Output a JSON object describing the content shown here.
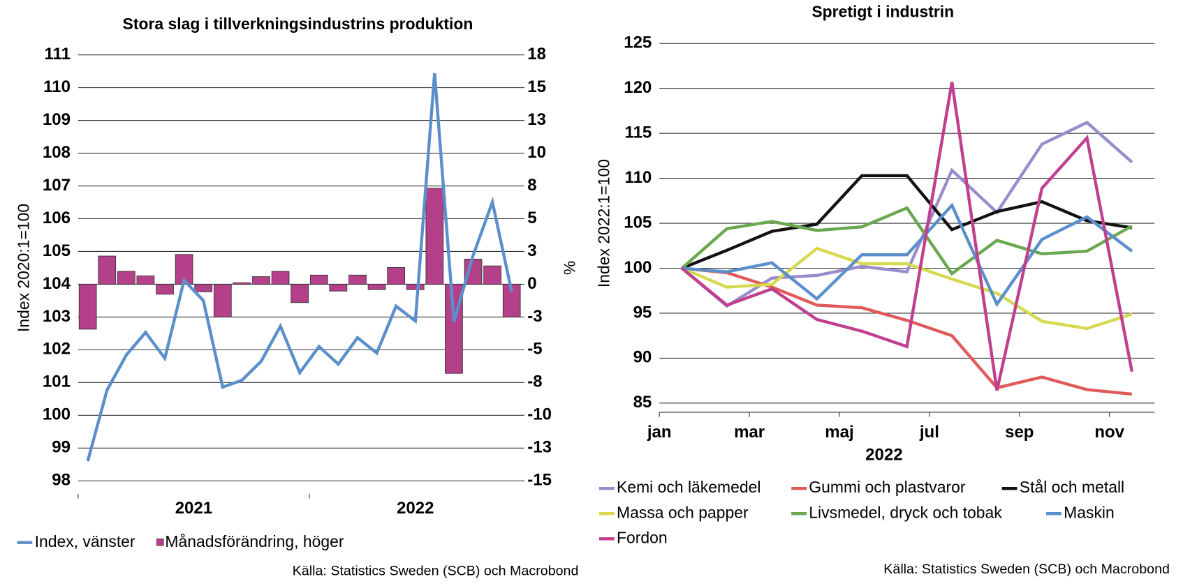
{
  "chart_data": [
    {
      "type": "combo",
      "title": "Stora slag i tillverkningsindustrins produktion",
      "ylabel": "Index 2020:1=100",
      "y2label": "%",
      "source": "Källa: Statistics Sweden (SCB) och Macrobond",
      "categories": [
        "2021",
        null,
        null,
        null,
        null,
        null,
        null,
        null,
        null,
        null,
        null,
        null,
        "2022",
        null,
        null,
        null,
        null,
        null,
        null,
        null,
        null,
        null,
        null
      ],
      "ylim": [
        98,
        111
      ],
      "yticks": [
        98,
        99,
        100,
        101,
        102,
        103,
        104,
        105,
        106,
        107,
        108,
        109,
        110,
        111
      ],
      "y2lim": [
        -15,
        17.5
      ],
      "y2ticks": [
        -15,
        {
          "value": -12.5,
          "label": "-13"
        },
        -10,
        {
          "value": -7.5,
          "label": "-8"
        },
        -5,
        {
          "value": -2.5,
          "label": "-3"
        },
        0,
        {
          "value": 2.5,
          "label": "3"
        },
        5,
        {
          "value": 7.5,
          "label": "8"
        },
        10,
        {
          "value": 12.5,
          "label": "13"
        },
        15,
        {
          "value": 17.5,
          "label": "18"
        }
      ],
      "grid": true,
      "series": [
        {
          "name": "Index, vänster",
          "kind": "line",
          "color": "#5b8fcc",
          "values": [
            98.6,
            100.77,
            101.84,
            102.53,
            101.74,
            104.12,
            103.5,
            100.86,
            101.07,
            101.65,
            102.72,
            101.3,
            102.1,
            101.56,
            102.37,
            101.9,
            103.33,
            102.88,
            110.44,
            102.86,
            104.88,
            106.51,
            103.77
          ]
        },
        {
          "name": "Månadsförändring, höger",
          "kind": "bar",
          "axis": "y2",
          "color": "#b5408a",
          "values": [
            -3.43,
            2.15,
            0.99,
            0.64,
            -0.76,
            2.27,
            -0.58,
            -2.5,
            0.12,
            0.58,
            0.99,
            -1.4,
            0.7,
            -0.52,
            0.7,
            -0.41,
            1.28,
            -0.41,
            7.33,
            -6.8,
            1.92,
            1.4,
            -2.5
          ]
        }
      ]
    },
    {
      "type": "line",
      "title": "Spretigt i industrin",
      "ylabel": "Index 2022:1=100",
      "xlabel": "2022",
      "source": "Källa: Statistics Sweden (SCB) och Macrobond",
      "categories": [
        "jan",
        null,
        "mar",
        null,
        "maj",
        null,
        "jul",
        null,
        "sep",
        null,
        "nov"
      ],
      "ylim": [
        85,
        125
      ],
      "yticks": [
        85,
        90,
        95,
        100,
        105,
        110,
        115,
        120,
        125
      ],
      "grid": true,
      "series": [
        {
          "name": "Kemi och läkemedel",
          "color": "#9a8ccc",
          "values": [
            100,
            95.8,
            98.9,
            99.2,
            100.2,
            99.6,
            110.9,
            106.2,
            113.8,
            116.2,
            111.8
          ]
        },
        {
          "name": "Gummi och plastvaror",
          "color": "#e05a5a",
          "values": [
            100,
            99.5,
            97.9,
            95.9,
            95.6,
            94.2,
            92.5,
            86.7,
            87.9,
            86.5,
            86.0
          ]
        },
        {
          "name": "Stål och metall",
          "color": "#111111",
          "values": [
            100,
            102,
            104.1,
            104.9,
            110.3,
            110.3,
            104.3,
            106.3,
            107.4,
            105.3,
            104.5
          ]
        },
        {
          "name": "Massa och papper",
          "color": "#d6d94e",
          "values": [
            100,
            97.9,
            98.2,
            102.2,
            100.5,
            100.5,
            98.8,
            97.2,
            94.1,
            93.3,
            94.9
          ]
        },
        {
          "name": "Livsmedel, dryck och tobak",
          "color": "#6aa84f",
          "values": [
            100,
            104.4,
            105.2,
            104.2,
            104.6,
            106.7,
            99.4,
            103.1,
            101.6,
            101.9,
            104.7
          ]
        },
        {
          "name": "Maskin",
          "color": "#5b8fcc",
          "values": [
            100,
            99.6,
            100.6,
            96.6,
            101.5,
            101.5,
            107.0,
            96.0,
            103.2,
            105.7,
            101.9
          ]
        },
        {
          "name": "Fordon",
          "color": "#c0408e",
          "values": [
            100,
            95.9,
            97.7,
            94.3,
            93.0,
            91.3,
            120.7,
            86.4,
            108.9,
            114.5,
            88.5
          ]
        }
      ]
    }
  ]
}
